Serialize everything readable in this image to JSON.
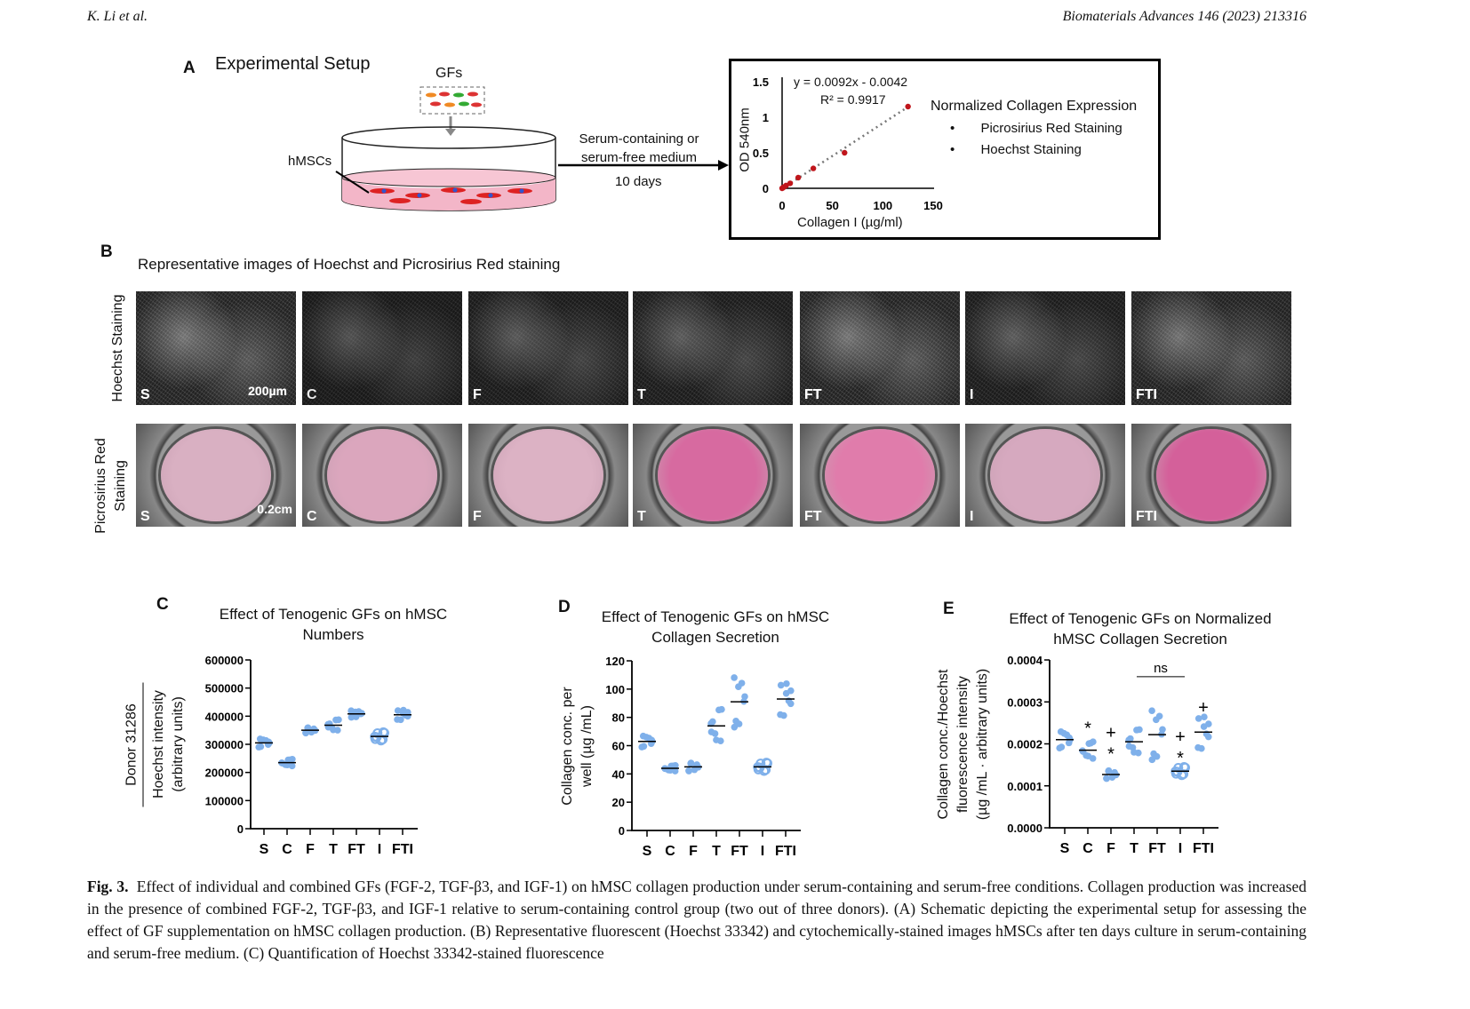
{
  "header": {
    "left": "K. Li et al.",
    "right": "Biomaterials Advances 146 (2023) 213316"
  },
  "panelA": {
    "label": "A",
    "title": "Experimental Setup",
    "gfs": "GFs",
    "hmscs": "hMSCs",
    "medium_line1": "Serum-containing or",
    "medium_line2": "serum-free  medium",
    "duration": "10 days",
    "std_curve": {
      "equation": "y = 0.0092x - 0.0042",
      "r2": "R² = 0.9917",
      "ylabel": "OD 540nm",
      "xlabel": "Collagen I (µg/ml)",
      "yticks": [
        "1.5",
        "1",
        "0.5",
        "0"
      ],
      "xticks": [
        "0",
        "50",
        "100",
        "150"
      ],
      "points": [
        [
          0,
          0
        ],
        [
          1,
          0.01
        ],
        [
          2,
          0.02
        ],
        [
          4,
          0.04
        ],
        [
          8,
          0.07
        ],
        [
          16,
          0.15
        ],
        [
          31,
          0.28
        ],
        [
          62,
          0.5
        ],
        [
          125,
          1.15
        ]
      ],
      "legend_title": "Normalized Collagen Expression",
      "legend_items": [
        "Picrosirius Red Staining",
        "Hoechst Staining"
      ]
    },
    "accent": "#c0161c"
  },
  "panelB": {
    "label": "B",
    "title": "Representative images of Hoechst and Picrosirius Red staining",
    "row1": "Hoechst Staining",
    "row2_l1": "Picrosirius Red",
    "row2_l2": "Staining",
    "groups": [
      "S",
      "C",
      "F",
      "T",
      "FT",
      "I",
      "FTI"
    ],
    "scale1": "200µm",
    "scale2": "0.2cm"
  },
  "chart_data": [
    {
      "type": "scatter",
      "label": "C",
      "title_l1": "Effect of Tenogenic GFs on hMSC",
      "title_l2": "Numbers",
      "side": "Donor 31286",
      "ylabel_l1": "Hoechst intensity",
      "ylabel_l2": "(arbitrary units)",
      "categories": [
        "S",
        "C",
        "F",
        "T",
        "FT",
        "I",
        "FTI"
      ],
      "means": [
        305000,
        235000,
        350000,
        368000,
        408000,
        328000,
        405000
      ],
      "spread": [
        15000,
        12000,
        10000,
        20000,
        12000,
        15000,
        18000
      ],
      "ylim": [
        0,
        600000
      ],
      "yticks": [
        "0",
        "100000",
        "200000",
        "300000",
        "400000",
        "500000",
        "600000"
      ],
      "color": "#7fb0ea",
      "annotations": []
    },
    {
      "type": "scatter",
      "label": "D",
      "title_l1": "Effect of Tenogenic GFs on hMSC",
      "title_l2": "Collagen Secretion",
      "ylabel_l1": "Collagen conc. per",
      "ylabel_l2": "well (µg /mL)",
      "categories": [
        "S",
        "C",
        "F",
        "T",
        "FT",
        "I",
        "FTI"
      ],
      "means": [
        63,
        44,
        45,
        74,
        91,
        45,
        93
      ],
      "spread": [
        4,
        2,
        3,
        12,
        18,
        3,
        12
      ],
      "ylim": [
        0,
        120
      ],
      "yticks": [
        "0",
        "20",
        "40",
        "60",
        "80",
        "100",
        "120"
      ],
      "color": "#7fb0ea",
      "annotations": []
    },
    {
      "type": "scatter",
      "label": "E",
      "title_l1": "Effect of Tenogenic GFs on Normalized",
      "title_l2": "hMSC Collagen Secretion",
      "ylabel_l1": "Collagen conc./Hoechst",
      "ylabel_l2": "fluorescence intensity",
      "ylabel_l3": "(µg /mL · arbitrary units)",
      "categories": [
        "S",
        "C",
        "F",
        "T",
        "FT",
        "I",
        "FTI"
      ],
      "means": [
        0.00021,
        0.000185,
        0.000127,
        0.000205,
        0.000222,
        0.000135,
        0.000228
      ],
      "spread": [
        2e-05,
        2e-05,
        1e-05,
        3e-05,
        6e-05,
        1e-05,
        4e-05
      ],
      "ylim": [
        0,
        0.0004
      ],
      "yticks": [
        "0.0000",
        "0.0001",
        "0.0002",
        "0.0003",
        "0.0004"
      ],
      "color": "#7fb0ea",
      "ns": "ns",
      "annotations": [
        {
          "cat": "C",
          "text": "*",
          "y": 0.00024
        },
        {
          "cat": "F",
          "text": "+",
          "y": 0.00023
        },
        {
          "cat": "F",
          "text": "*",
          "y": 0.000195
        },
        {
          "cat": "I",
          "text": "+",
          "y": 0.00022
        },
        {
          "cat": "I",
          "text": "*",
          "y": 0.000195
        },
        {
          "cat": "FTI",
          "text": "+",
          "y": 0.00029
        }
      ]
    }
  ],
  "caption": {
    "fig": "Fig. 3.",
    "text": "Effect of individual and combined GFs (FGF-2, TGF-β3, and IGF-1) on hMSC collagen production under serum-containing and serum-free conditions. Collagen production was increased in the presence of combined FGF-2, TGF-β3, and IGF-1 relative to serum-containing control group (two out of three donors). (A) Schematic depicting the experimental setup for assessing the effect of GF supplementation on hMSC collagen production. (B) Representative fluorescent (Hoechst 33342) and cytochemically-stained images hMSCs after ten days culture in serum-containing and serum-free medium. (C) Quantification of Hoechst 33342-stained fluorescence"
  }
}
